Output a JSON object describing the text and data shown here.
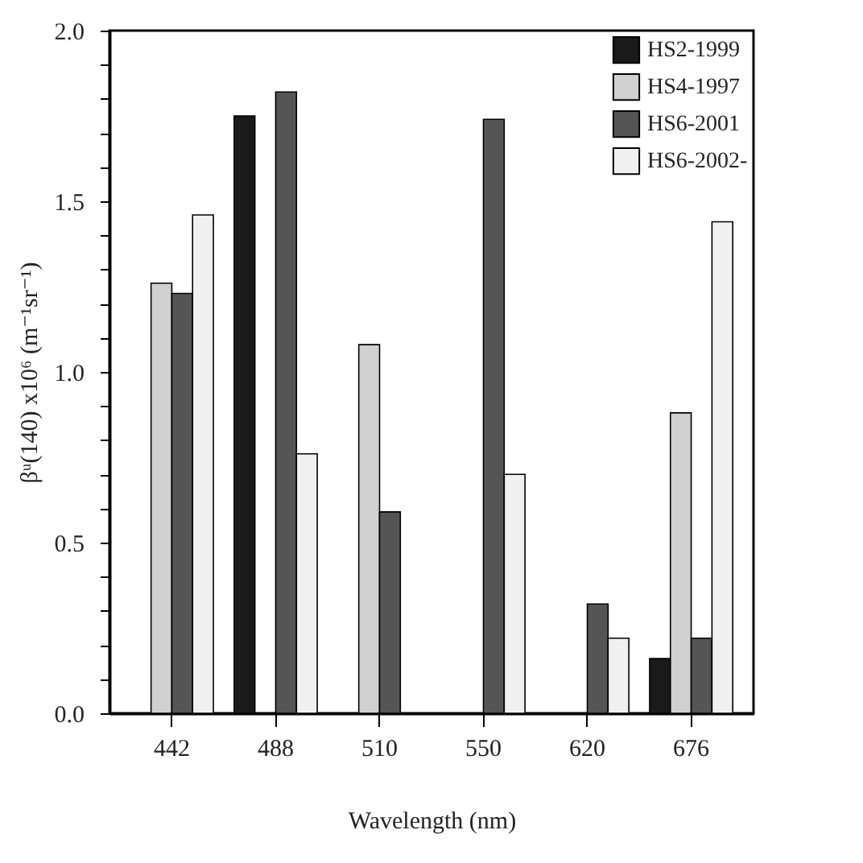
{
  "chart_data": {
    "type": "bar",
    "xlabel": "Wavelength (nm)",
    "ylabel": "βᵘ(140) x10⁶ (m⁻¹sr⁻¹)",
    "categories": [
      "442",
      "488",
      "510",
      "550",
      "620",
      "676"
    ],
    "series": [
      {
        "name": "HS2-1999",
        "color": "#1a1a1a",
        "values": [
          null,
          1.75,
          null,
          null,
          null,
          0.16
        ]
      },
      {
        "name": "HS4-1997",
        "color": "#d0d0d0",
        "values": [
          1.26,
          null,
          1.08,
          null,
          null,
          0.88
        ]
      },
      {
        "name": "HS6-2001",
        "color": "#555555",
        "values": [
          1.23,
          1.82,
          0.59,
          1.74,
          0.32,
          0.22
        ]
      },
      {
        "name": "HS6-2002-",
        "color": "#f0f0f0",
        "values": [
          1.46,
          0.76,
          null,
          0.7,
          0.22,
          1.44
        ]
      }
    ],
    "ylim": [
      0,
      2
    ],
    "yticks": [
      {
        "value": 0,
        "label": "0.0"
      },
      {
        "value": 0.1,
        "label": null
      },
      {
        "value": 0.2,
        "label": null
      },
      {
        "value": 0.3,
        "label": null
      },
      {
        "value": 0.4,
        "label": null
      },
      {
        "value": 0.5,
        "label": "0.5"
      },
      {
        "value": 0.6,
        "label": null
      },
      {
        "value": 0.7,
        "label": null
      },
      {
        "value": 0.8,
        "label": null
      },
      {
        "value": 0.9,
        "label": null
      },
      {
        "value": 1,
        "label": "1.0"
      },
      {
        "value": 1.1,
        "label": null
      },
      {
        "value": 1.2,
        "label": null
      },
      {
        "value": 1.3,
        "label": null
      },
      {
        "value": 1.4,
        "label": null
      },
      {
        "value": 1.5,
        "label": "1.5"
      },
      {
        "value": 1.6,
        "label": null
      },
      {
        "value": 1.7,
        "label": null
      },
      {
        "value": 1.8,
        "label": null
      },
      {
        "value": 1.9,
        "label": null
      },
      {
        "value": 2,
        "label": "2.0"
      }
    ],
    "grid": false,
    "legend": "top right"
  }
}
